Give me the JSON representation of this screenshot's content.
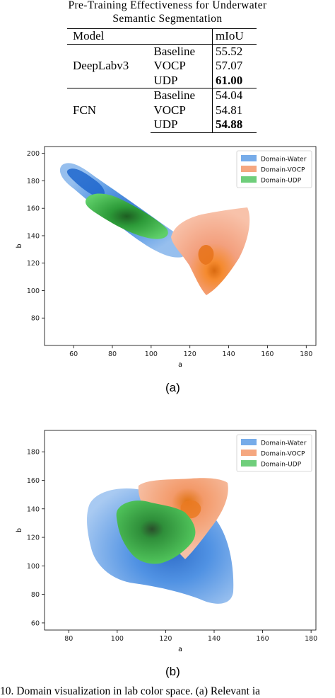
{
  "table": {
    "title_line1": "Pre-Training Effectiveness for Underwater",
    "title_line2": "Semantic Segmentation",
    "header": {
      "model": "Model",
      "miou": "mIoU"
    },
    "groups": [
      {
        "model": "DeepLabv3",
        "rows": [
          {
            "method": "Baseline",
            "miou": "55.52",
            "bold": false
          },
          {
            "method": "VOCP",
            "miou": "57.07",
            "bold": false
          },
          {
            "method": "UDP",
            "miou": "61.00",
            "bold": true
          }
        ]
      },
      {
        "model": "FCN",
        "rows": [
          {
            "method": "Baseline",
            "miou": "54.04",
            "bold": false
          },
          {
            "method": "VOCP",
            "miou": "54.81",
            "bold": false
          },
          {
            "method": "UDP",
            "miou": "54.88",
            "bold": true
          }
        ]
      }
    ]
  },
  "colors": {
    "water": "#4a90e2",
    "vocp": "#f28a55",
    "udp": "#3fbd4f"
  },
  "chart_data": [
    {
      "type": "kde-contour",
      "panel": "(a)",
      "xlabel": "a",
      "ylabel": "b",
      "xlim": [
        45,
        185
      ],
      "ylim": [
        60,
        205
      ],
      "xticks": [
        60,
        80,
        100,
        120,
        140,
        160,
        180
      ],
      "yticks": [
        80,
        100,
        120,
        140,
        160,
        180,
        200
      ],
      "legend_position": "top-right",
      "series": [
        {
          "name": "Domain-Water",
          "mode": [
            70,
            178
          ]
        },
        {
          "name": "Domain-VOCP",
          "mode": [
            129,
            130
          ]
        },
        {
          "name": "Domain-UDP",
          "mode": [
            88,
            152
          ]
        }
      ]
    },
    {
      "type": "kde-contour",
      "panel": "(b)",
      "xlabel": "a",
      "ylabel": "b",
      "xlim": [
        70,
        182
      ],
      "ylim": [
        55,
        195
      ],
      "xticks": [
        80,
        100,
        120,
        140,
        160,
        180
      ],
      "yticks": [
        60,
        80,
        100,
        120,
        140,
        160,
        180
      ],
      "legend_position": "top-right",
      "series": [
        {
          "name": "Domain-Water",
          "mode": [
            133,
            108
          ]
        },
        {
          "name": "Domain-VOCP",
          "mode": [
            132,
            136
          ]
        },
        {
          "name": "Domain-UDP",
          "mode": [
            118,
            119
          ]
        }
      ]
    }
  ],
  "captions": {
    "a": "(a)",
    "b": "(b)"
  },
  "figure_caption": "10.    Domain visualization in lab color space. (a) Relevant ia"
}
